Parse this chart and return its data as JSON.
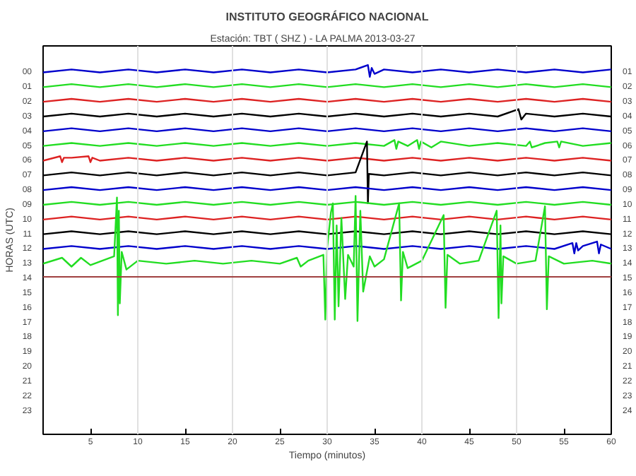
{
  "chart_data": {
    "type": "line",
    "title": "INSTITUTO GEOGRÁFICO NACIONAL",
    "subtitle": "Estación:  TBT ( SHZ ) - LA PALMA          2013-03-27",
    "xlabel": "Tiempo (minutos)",
    "ylabel": "HORAS (UTC)",
    "xlim": [
      0,
      60
    ],
    "xticks": [
      5,
      10,
      15,
      20,
      25,
      30,
      35,
      40,
      45,
      50,
      55,
      60
    ],
    "ylim": [
      24.7,
      -1.7
    ],
    "yticks": [
      {
        "value": 0,
        "label": "00"
      },
      {
        "value": 1,
        "label": "01"
      },
      {
        "value": 2,
        "label": "02"
      },
      {
        "value": 3,
        "label": "03"
      },
      {
        "value": 4,
        "label": "04"
      },
      {
        "value": 5,
        "label": "05"
      },
      {
        "value": 6,
        "label": "06"
      },
      {
        "value": 7,
        "label": "07"
      },
      {
        "value": 8,
        "label": "08"
      },
      {
        "value": 9,
        "label": "09"
      },
      {
        "value": 10,
        "label": "10"
      },
      {
        "value": 11,
        "label": "11"
      },
      {
        "value": 12,
        "label": "12"
      },
      {
        "value": 13,
        "label": "13"
      },
      {
        "value": 14,
        "label": "14"
      },
      {
        "value": 15,
        "label": "15"
      },
      {
        "value": 16,
        "label": "16"
      },
      {
        "value": 17,
        "label": "17"
      },
      {
        "value": 18,
        "label": "18"
      },
      {
        "value": 19,
        "label": "19"
      },
      {
        "value": 20,
        "label": "20"
      },
      {
        "value": 21,
        "label": "21"
      },
      {
        "value": 22,
        "label": "22"
      },
      {
        "value": 23,
        "label": "23"
      }
    ],
    "y2lim": [
      25.7,
      -0.7
    ],
    "y2ticks": [
      {
        "value": 1,
        "label": "01"
      },
      {
        "value": 2,
        "label": "02"
      },
      {
        "value": 3,
        "label": "03"
      },
      {
        "value": 4,
        "label": "04"
      },
      {
        "value": 5,
        "label": "05"
      },
      {
        "value": 6,
        "label": "06"
      },
      {
        "value": 7,
        "label": "07"
      },
      {
        "value": 8,
        "label": "08"
      },
      {
        "value": 9,
        "label": "09"
      },
      10,
      11,
      12,
      13,
      14,
      15,
      16,
      17,
      18,
      19,
      20,
      21,
      22,
      23,
      24
    ],
    "x": [
      0,
      3,
      6,
      9,
      12,
      15,
      18,
      21,
      24,
      27,
      30,
      33,
      36,
      39,
      42,
      45,
      48,
      51,
      54,
      57,
      60
    ],
    "series": [
      {
        "color": "#0000cc",
        "x": [
          0,
          3,
          6,
          9,
          12,
          15,
          18,
          21,
          24,
          27,
          30,
          33,
          34.3,
          34.5,
          34.7,
          35,
          36,
          39,
          42,
          45,
          48,
          51,
          54,
          57,
          60
        ],
        "values": [
          0.1,
          -0.1,
          0.1,
          -0.1,
          0.1,
          -0.1,
          0.1,
          -0.1,
          0.1,
          -0.1,
          0.1,
          -0.1,
          -0.4,
          0.4,
          -0.2,
          0.2,
          -0.1,
          0.1,
          -0.1,
          0.1,
          -0.1,
          0.1,
          -0.1,
          0.1,
          -0.1
        ]
      },
      {
        "color": "#22dd22",
        "values": [
          1.1,
          0.9,
          1.1,
          0.9,
          1.1,
          0.9,
          1.1,
          0.9,
          1.1,
          0.9,
          1.1,
          0.9,
          1.1,
          0.9,
          1.1,
          0.9,
          1.1,
          0.9,
          1.1,
          0.9,
          1.1
        ]
      },
      {
        "color": "#dd2222",
        "values": [
          2.1,
          1.9,
          2.1,
          1.9,
          2.1,
          1.9,
          2.1,
          1.9,
          2.1,
          1.9,
          2.1,
          1.9,
          2.1,
          1.9,
          2.1,
          1.9,
          2.1,
          1.9,
          2.1,
          1.9,
          2.1
        ]
      },
      {
        "color": "#000000",
        "x": [
          0,
          3,
          6,
          9,
          12,
          15,
          18,
          21,
          24,
          27,
          30,
          33,
          36,
          39,
          42,
          45,
          48,
          50.2,
          50.5,
          51,
          54,
          57,
          60
        ],
        "values": [
          3.1,
          2.9,
          3.1,
          2.9,
          3.1,
          2.9,
          3.1,
          2.9,
          3.1,
          2.9,
          3.1,
          2.9,
          3.1,
          2.9,
          3.1,
          2.9,
          3.1,
          2.6,
          3.3,
          2.9,
          3.1,
          2.9,
          3.1
        ]
      },
      {
        "color": "#0000cc",
        "values": [
          4.1,
          3.9,
          4.1,
          3.9,
          4.1,
          3.9,
          4.1,
          3.9,
          4.1,
          3.9,
          4.1,
          3.9,
          4.1,
          3.9,
          4.1,
          3.9,
          4.1,
          3.9,
          4.1,
          3.9,
          4.1
        ]
      },
      {
        "color": "#22dd22",
        "x": [
          0,
          3,
          6,
          9,
          12,
          15,
          18,
          21,
          24,
          27,
          30,
          33,
          36,
          37.1,
          37.3,
          37.5,
          38.5,
          39.5,
          39.7,
          39.9,
          41,
          42,
          45,
          48,
          51,
          51.4,
          51.6,
          53,
          54.3,
          54.5,
          54.7,
          57,
          60
        ],
        "values": [
          5.1,
          4.9,
          5.1,
          4.9,
          5.1,
          4.9,
          5.1,
          4.9,
          5.1,
          4.9,
          5.1,
          4.9,
          5.1,
          4.7,
          5.3,
          4.8,
          5.1,
          4.7,
          5.3,
          4.8,
          5.2,
          4.8,
          5.1,
          4.9,
          5.1,
          4.8,
          5.2,
          4.9,
          4.8,
          5.2,
          4.8,
          5.1,
          4.9
        ]
      },
      {
        "color": "#dd2222",
        "x": [
          0,
          1.8,
          2,
          2.2,
          3,
          4.8,
          5,
          5.2,
          6,
          9,
          12,
          15,
          18,
          21,
          24,
          27,
          30,
          33,
          36,
          39,
          42,
          45,
          48,
          51,
          54,
          57,
          60
        ],
        "values": [
          6.1,
          5.8,
          6.2,
          5.9,
          5.9,
          5.8,
          6.2,
          5.9,
          6.1,
          5.9,
          6.1,
          5.9,
          6.1,
          5.9,
          6.1,
          5.9,
          6.1,
          5.9,
          6.1,
          5.9,
          6.1,
          5.9,
          6.1,
          5.9,
          6.1,
          5.9,
          6.1
        ]
      },
      {
        "color": "#000000",
        "x": [
          0,
          3,
          6,
          9,
          12,
          15,
          18,
          21,
          24,
          27,
          30,
          33,
          34.2,
          34.3,
          34.4,
          36,
          39,
          42,
          45,
          48,
          51,
          54,
          57,
          60
        ],
        "values": [
          7.1,
          6.9,
          7.1,
          6.9,
          7.1,
          6.9,
          7.1,
          6.9,
          7.1,
          6.9,
          7.1,
          6.9,
          4.8,
          9.0,
          7.0,
          7.1,
          6.9,
          7.1,
          6.9,
          7.1,
          6.9,
          7.1,
          6.9,
          7.1
        ]
      },
      {
        "color": "#0000cc",
        "values": [
          8.1,
          7.9,
          8.1,
          7.9,
          8.1,
          7.9,
          8.1,
          7.9,
          8.1,
          7.9,
          8.1,
          7.9,
          8.1,
          7.9,
          8.1,
          7.9,
          8.1,
          7.9,
          8.1,
          7.9,
          8.1
        ]
      },
      {
        "color": "#22dd22",
        "values": [
          9.1,
          8.9,
          9.1,
          8.9,
          9.1,
          8.9,
          9.1,
          8.9,
          9.1,
          8.9,
          9.1,
          8.9,
          9.1,
          8.9,
          9.1,
          8.9,
          9.1,
          8.9,
          9.1,
          8.9,
          9.1
        ]
      },
      {
        "color": "#dd2222",
        "values": [
          10.1,
          9.9,
          10.1,
          9.9,
          10.1,
          9.9,
          10.1,
          9.9,
          10.1,
          9.9,
          10.1,
          9.9,
          10.1,
          9.9,
          10.1,
          9.9,
          10.1,
          9.9,
          10.1,
          9.9,
          10.1
        ]
      },
      {
        "color": "#000000",
        "values": [
          11.1,
          10.9,
          11.1,
          10.9,
          11.1,
          10.9,
          11.1,
          10.9,
          11.1,
          10.9,
          11.1,
          10.9,
          11.1,
          10.9,
          11.1,
          10.9,
          11.1,
          10.9,
          11.1,
          10.9,
          11.1
        ]
      },
      {
        "color": "#0000cc",
        "x": [
          0,
          3,
          6,
          9,
          12,
          15,
          18,
          21,
          24,
          27,
          30,
          33,
          36,
          39,
          42,
          45,
          48,
          51,
          54,
          55.9,
          56.1,
          56.3,
          56.5,
          57,
          58.5,
          58.7,
          58.9,
          60
        ],
        "values": [
          12.1,
          11.9,
          12.1,
          11.9,
          12.1,
          11.9,
          12.1,
          11.9,
          12.1,
          11.9,
          12.1,
          11.9,
          12.1,
          11.9,
          12.1,
          11.9,
          12.1,
          11.9,
          12.1,
          11.7,
          12.4,
          11.7,
          12.2,
          11.9,
          11.6,
          12.4,
          11.8,
          12.1
        ]
      },
      {
        "color": "#22dd22",
        "x": [
          0,
          2,
          3,
          4,
          5,
          7.5,
          7.8,
          7.9,
          8.0,
          8.1,
          8.3,
          8.8,
          10,
          13,
          16,
          19,
          22,
          25,
          26.8,
          27.2,
          28,
          29.6,
          29.8,
          30.0,
          30.4,
          30.6,
          30.8,
          31.0,
          31.2,
          31.5,
          31.9,
          32.2,
          32.8,
          33.0,
          33.2,
          33.5,
          33.8,
          34.5,
          35,
          36,
          37.6,
          37.8,
          38.0,
          38.5,
          40,
          42.3,
          42.5,
          42.7,
          44,
          46,
          47.9,
          48.1,
          48.3,
          48.4,
          48.6,
          50,
          52,
          53.0,
          53.2,
          53.4,
          55,
          58,
          60
        ],
        "values": [
          13.1,
          12.7,
          13.3,
          12.7,
          13.2,
          12.6,
          8.6,
          16.6,
          9.5,
          15.8,
          12.3,
          13.5,
          12.9,
          13.1,
          12.9,
          13.1,
          12.9,
          13.1,
          12.7,
          13.3,
          12.9,
          12.5,
          16.9,
          12.0,
          9.6,
          9.0,
          16.9,
          10.5,
          16.0,
          10.0,
          15.5,
          12.5,
          13.3,
          8.5,
          17.0,
          9.5,
          15.0,
          12.6,
          13.3,
          12.8,
          9.0,
          15.6,
          12.3,
          13.4,
          12.9,
          9.8,
          16.1,
          12.5,
          13.1,
          12.9,
          9.5,
          16.8,
          10.5,
          15.8,
          12.6,
          13.1,
          12.9,
          9.2,
          16.2,
          12.6,
          13.1,
          12.9,
          13.1
        ]
      }
    ],
    "ref_lines": [
      {
        "axis": "x",
        "value": 10,
        "color": "#e0e0e0"
      },
      {
        "axis": "x",
        "value": 20,
        "color": "#e0e0e0"
      },
      {
        "axis": "x",
        "value": 30,
        "color": "#e0e0e0"
      },
      {
        "axis": "x",
        "value": 40,
        "color": "#e0e0e0"
      },
      {
        "axis": "x",
        "value": 50,
        "color": "#e0e0e0"
      },
      {
        "axis": "y",
        "value": 14,
        "color": "#a04040"
      }
    ],
    "grid": false,
    "line_style": "solid"
  }
}
